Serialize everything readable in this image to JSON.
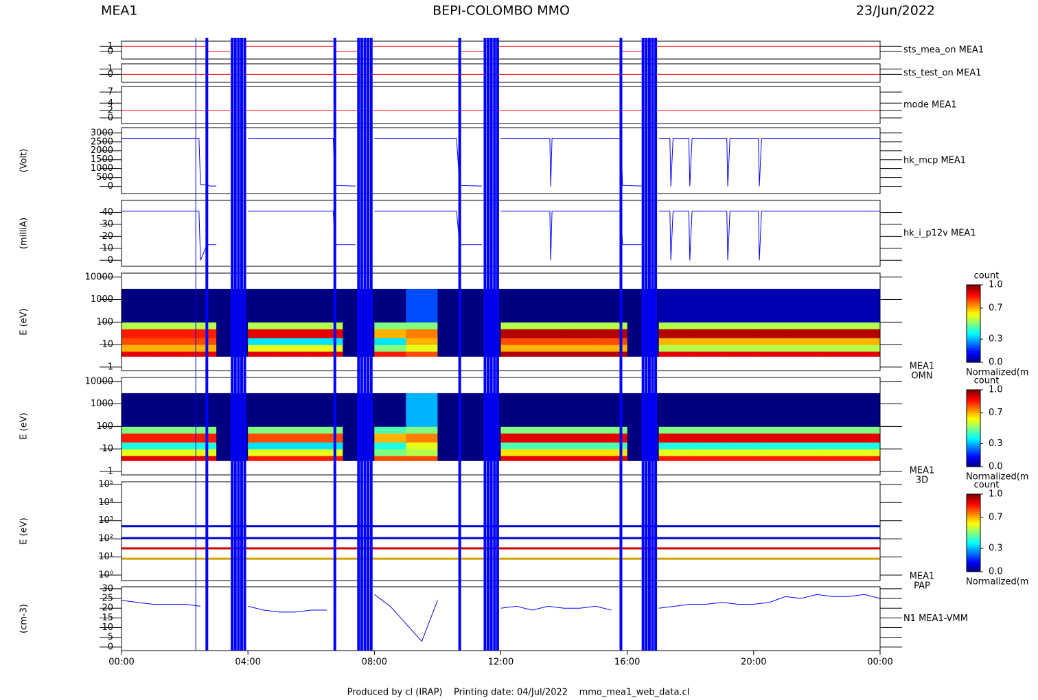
{
  "header": {
    "left": "MEA1",
    "center": "BEPI-COLOMBO MMO",
    "right": "23/Jun/2022"
  },
  "footer": "Produced by cl (IRAP)    Printing date: 04/Jul/2022    mmo_mea1_web_data.cl",
  "xaxis": {
    "xlim": [
      0,
      24
    ],
    "xticks": [
      {
        "value": 0,
        "label": "00:00"
      },
      {
        "value": 4,
        "label": "04:00"
      },
      {
        "value": 8,
        "label": "08:00"
      },
      {
        "value": 12,
        "label": "12:00"
      },
      {
        "value": 16,
        "label": "16:00"
      },
      {
        "value": 20,
        "label": "20:00"
      },
      {
        "value": 24,
        "label": "00:00"
      }
    ],
    "markers": [
      2.35,
      2.7,
      3.5,
      3.6,
      3.7,
      3.8,
      3.9,
      6.75,
      7.5,
      7.6,
      7.7,
      7.8,
      7.9,
      10.7,
      11.5,
      11.6,
      11.7,
      11.8,
      11.9,
      15.8,
      16.5,
      16.6,
      16.7,
      16.8,
      16.9
    ],
    "marker_color": "#0000ff"
  },
  "colorbar": {
    "title": "count",
    "colormap": "jet",
    "ticks": [
      {
        "value": 0,
        "label": "0.0"
      },
      {
        "value": 0.3,
        "label": "0.3"
      },
      {
        "value": 0.7,
        "label": "0.7"
      },
      {
        "value": 1,
        "label": "1.0"
      }
    ],
    "caption": "Normalized(m"
  },
  "chart_data": [
    {
      "type": "line",
      "label": "sts_mea_on MEA1",
      "color": "#ff0000",
      "ylim": [
        -1.5,
        2
      ],
      "yticks": [
        0,
        1
      ],
      "x": [
        0,
        2.7,
        2.7,
        3.5,
        3.5,
        6.75,
        6.75,
        7.5,
        7.5,
        10.7,
        10.7,
        11.5,
        11.5,
        15.8,
        15.8,
        16.5,
        16.5,
        24
      ],
      "values": [
        1,
        1,
        0,
        0,
        1,
        1,
        0,
        0,
        1,
        1,
        0,
        0,
        1,
        1,
        0,
        0,
        1,
        1
      ]
    },
    {
      "type": "line",
      "label": "sts_test_on MEA1",
      "color": "#ff0000",
      "ylim": [
        -1.5,
        2
      ],
      "yticks": [
        0,
        1
      ],
      "x": [
        0,
        24
      ],
      "values": [
        0,
        0
      ]
    },
    {
      "type": "line",
      "label": "mode MEA1",
      "color": "#ff0000",
      "ylim": [
        -1.5,
        8.5
      ],
      "yticks": [
        0,
        2,
        4,
        7
      ],
      "x": [
        0,
        24
      ],
      "values": [
        2,
        2
      ]
    },
    {
      "type": "line",
      "label": "hk_mcp MEA1",
      "ylabel": "(Volt)",
      "color": "#0000ff",
      "ylim": [
        -400,
        3300
      ],
      "yticks": [
        0,
        500,
        1000,
        1500,
        2000,
        2500,
        3000
      ],
      "x": [
        0,
        2.45,
        2.5,
        2.7,
        2.8,
        3.0,
        3.4,
        4.0,
        6.3,
        6.7,
        6.75,
        7.4,
        7.5,
        8.0,
        10.6,
        10.7,
        11.4,
        11.5,
        12.0,
        13.55,
        13.58,
        13.62,
        15.8,
        15.85,
        16.5,
        16.6,
        17.0,
        17.35,
        17.38,
        17.45,
        17.95,
        17.98,
        18.05,
        19.15,
        19.18,
        19.25,
        20.15,
        20.18,
        20.25,
        24
      ],
      "values": [
        2700,
        2700,
        100,
        100,
        20,
        20,
        null,
        2700,
        2700,
        2700,
        50,
        20,
        null,
        2700,
        2700,
        50,
        20,
        null,
        2700,
        2700,
        0,
        2700,
        2700,
        50,
        20,
        null,
        2700,
        2700,
        0,
        2700,
        2700,
        0,
        2700,
        2700,
        0,
        2700,
        2700,
        0,
        2700,
        2700
      ]
    },
    {
      "type": "line",
      "label": "hk_i_p12v MEA1",
      "ylabel": "(milliA)",
      "color": "#0000ff",
      "ylim": [
        -5,
        50
      ],
      "yticks": [
        0,
        10,
        20,
        30,
        40
      ],
      "x": [
        0,
        2.45,
        2.5,
        2.7,
        2.8,
        3.0,
        3.4,
        4.0,
        6.3,
        6.7,
        6.75,
        7.4,
        7.5,
        8.0,
        10.6,
        10.7,
        11.4,
        11.5,
        12.0,
        13.55,
        13.58,
        13.62,
        15.8,
        15.85,
        16.5,
        16.6,
        17.0,
        17.35,
        17.38,
        17.45,
        17.95,
        17.98,
        18.05,
        19.15,
        19.18,
        19.25,
        20.15,
        20.18,
        20.25,
        24
      ],
      "values": [
        41,
        41,
        0,
        13,
        13,
        13,
        null,
        41,
        41,
        41,
        13,
        13,
        null,
        41,
        41,
        13,
        13,
        null,
        41,
        41,
        0,
        41,
        41,
        13,
        13,
        null,
        41,
        41,
        0,
        41,
        41,
        0,
        41,
        41,
        0,
        41,
        41,
        0,
        41,
        41
      ]
    },
    {
      "type": "heatmap",
      "label": [
        "MEA1",
        "OMN"
      ],
      "ylabel": "E (eV)",
      "log": true,
      "ylim": [
        0.7,
        15000
      ],
      "yticks": [
        1,
        10,
        100,
        1000,
        10000
      ],
      "bins": [
        0,
        1,
        2,
        3,
        4,
        5,
        6,
        7,
        8,
        9,
        10,
        11,
        12,
        13,
        14,
        15,
        16,
        17,
        18,
        19,
        20,
        21,
        22,
        23,
        24
      ],
      "energy_bins": [
        3,
        5,
        10,
        20,
        50,
        100,
        3000
      ],
      "values": [
        [
          0.9,
          0.7,
          0.8,
          0.85,
          0.55,
          0
        ],
        [
          0.9,
          0.7,
          0.8,
          0.85,
          0.55,
          0
        ],
        [
          0.9,
          0.7,
          0.8,
          0.85,
          0.55,
          0
        ],
        [
          0,
          0,
          0,
          0,
          0,
          0
        ],
        [
          0.9,
          0.6,
          0.35,
          0.9,
          0.55,
          0
        ],
        [
          0.9,
          0.6,
          0.35,
          0.9,
          0.55,
          0
        ],
        [
          0.9,
          0.6,
          0.35,
          0.9,
          0.55,
          0
        ],
        [
          0,
          0,
          0,
          0,
          0,
          0
        ],
        [
          0.85,
          0.5,
          0.35,
          0.7,
          0.5,
          0
        ],
        [
          0.8,
          0.6,
          0.7,
          0.75,
          0.5,
          0.2
        ],
        [
          0,
          0,
          0,
          0,
          0,
          0
        ],
        [
          0,
          0,
          0,
          0,
          0,
          0
        ],
        [
          0.95,
          0.7,
          0.8,
          0.95,
          0.55,
          0
        ],
        [
          0.95,
          0.7,
          0.8,
          0.95,
          0.55,
          0
        ],
        [
          0.95,
          0.7,
          0.8,
          0.95,
          0.55,
          0
        ],
        [
          0.95,
          0.7,
          0.8,
          0.95,
          0.55,
          0
        ],
        [
          0,
          0,
          0,
          0,
          0,
          0
        ],
        [
          0.9,
          0.55,
          0.7,
          0.95,
          0.55,
          0.05
        ],
        [
          0.9,
          0.55,
          0.7,
          0.95,
          0.55,
          0.05
        ],
        [
          0.9,
          0.55,
          0.7,
          0.95,
          0.55,
          0.05
        ],
        [
          0.9,
          0.55,
          0.7,
          0.95,
          0.55,
          0.05
        ],
        [
          0.9,
          0.55,
          0.7,
          0.95,
          0.55,
          0.05
        ],
        [
          0.9,
          0.55,
          0.7,
          0.95,
          0.55,
          0.05
        ],
        [
          0.9,
          0.55,
          0.7,
          0.95,
          0.55,
          0.05
        ]
      ]
    },
    {
      "type": "heatmap",
      "label": [
        "MEA1",
        "3D"
      ],
      "ylabel": "E (eV)",
      "log": true,
      "ylim": [
        0.7,
        15000
      ],
      "yticks": [
        1,
        10,
        100,
        1000,
        10000
      ],
      "bins": [
        0,
        1,
        2,
        3,
        4,
        5,
        6,
        7,
        8,
        9,
        10,
        11,
        12,
        13,
        14,
        15,
        16,
        17,
        18,
        19,
        20,
        21,
        22,
        23,
        24
      ],
      "energy_bins": [
        3,
        5,
        10,
        20,
        50,
        100,
        3000
      ],
      "values": [
        [
          0.9,
          0.6,
          0.4,
          0.85,
          0.5,
          0
        ],
        [
          0.9,
          0.6,
          0.4,
          0.85,
          0.5,
          0
        ],
        [
          0.9,
          0.6,
          0.4,
          0.85,
          0.5,
          0
        ],
        [
          0,
          0,
          0,
          0,
          0,
          0
        ],
        [
          0.85,
          0.6,
          0.35,
          0.8,
          0.5,
          0
        ],
        [
          0.85,
          0.6,
          0.35,
          0.8,
          0.5,
          0
        ],
        [
          0.85,
          0.6,
          0.35,
          0.8,
          0.5,
          0
        ],
        [
          0,
          0,
          0,
          0,
          0,
          0
        ],
        [
          0.8,
          0.5,
          0.4,
          0.7,
          0.45,
          0
        ],
        [
          0.8,
          0.55,
          0.6,
          0.75,
          0.5,
          0.3
        ],
        [
          0,
          0,
          0,
          0,
          0,
          0
        ],
        [
          0,
          0,
          0,
          0,
          0,
          0
        ],
        [
          0.9,
          0.65,
          0.45,
          0.9,
          0.5,
          0
        ],
        [
          0.9,
          0.65,
          0.45,
          0.9,
          0.5,
          0
        ],
        [
          0.9,
          0.65,
          0.45,
          0.9,
          0.5,
          0
        ],
        [
          0.9,
          0.65,
          0.45,
          0.9,
          0.5,
          0
        ],
        [
          0,
          0,
          0,
          0,
          0,
          0
        ],
        [
          0.85,
          0.6,
          0.4,
          0.9,
          0.5,
          0
        ],
        [
          0.85,
          0.6,
          0.4,
          0.9,
          0.5,
          0
        ],
        [
          0.85,
          0.6,
          0.4,
          0.9,
          0.5,
          0
        ],
        [
          0.85,
          0.6,
          0.4,
          0.9,
          0.5,
          0
        ],
        [
          0.85,
          0.6,
          0.4,
          0.9,
          0.5,
          0
        ],
        [
          0.85,
          0.6,
          0.4,
          0.9,
          0.5,
          0
        ],
        [
          0.85,
          0.6,
          0.4,
          0.9,
          0.5,
          0
        ]
      ]
    },
    {
      "type": "levels",
      "label": [
        "MEA1",
        "PAP"
      ],
      "ylabel": "E (eV)",
      "log": true,
      "ylim": [
        0.5,
        140000
      ],
      "yticks": [
        {
          "value": 1,
          "label": "10⁰"
        },
        {
          "value": 10,
          "label": "10¹"
        },
        {
          "value": 100,
          "label": "10²"
        },
        {
          "value": 1000,
          "label": "10³"
        },
        {
          "value": 10000,
          "label": "10⁴"
        },
        {
          "value": 100000,
          "label": "10⁵"
        }
      ],
      "values": [
        8,
        30,
        110,
        500
      ],
      "colors": [
        "#d0a000",
        "#cc0000",
        "#0000cc",
        "#0000cc"
      ]
    },
    {
      "type": "line",
      "label": "N1 MEA1-VMM",
      "ylabel": "(cm-3)",
      "color": "#0000ff",
      "ylim": [
        -1.8,
        31
      ],
      "yticks": [
        0,
        5,
        10,
        15,
        20,
        25,
        30
      ],
      "x": [
        0,
        0.5,
        1,
        1.5,
        2,
        2.5,
        3,
        3.5,
        4,
        4.5,
        5,
        5.5,
        6,
        6.5,
        7,
        7.5,
        8,
        8.5,
        9,
        9.5,
        10,
        10.5,
        11,
        11.5,
        12,
        12.5,
        13,
        13.5,
        14,
        14.5,
        15,
        15.5,
        16,
        16.5,
        17,
        17.5,
        18,
        18.5,
        19,
        19.5,
        20,
        20.5,
        21,
        21.5,
        22,
        22.5,
        23,
        23.5,
        24
      ],
      "values": [
        24,
        23,
        22,
        22,
        22,
        21,
        null,
        null,
        21,
        19,
        18,
        18,
        19,
        19,
        null,
        null,
        27,
        21,
        12,
        3,
        24,
        null,
        null,
        null,
        20,
        21,
        19,
        21,
        20,
        20,
        21,
        19,
        null,
        null,
        20,
        21,
        22,
        22,
        23,
        22,
        22,
        23,
        26,
        25,
        27,
        26,
        26,
        27,
        25
      ]
    }
  ]
}
